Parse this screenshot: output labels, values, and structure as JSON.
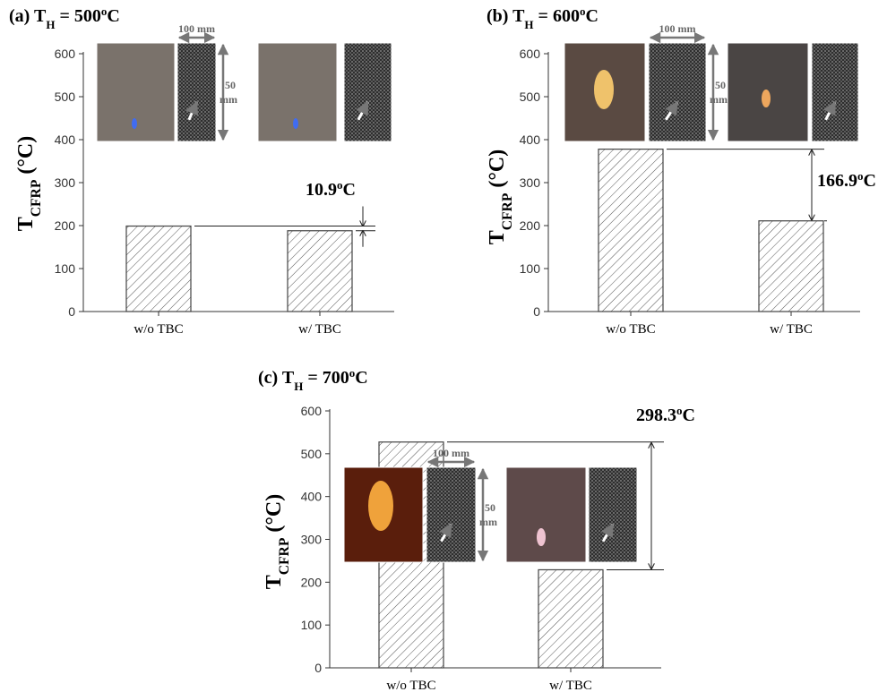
{
  "chart_data": [
    {
      "type": "bar",
      "title": [
        "(a) T",
        "H",
        " = 500",
        "o",
        "C"
      ],
      "ylabel": [
        "T",
        "CFRP",
        " (°C)"
      ],
      "categories": [
        "w/o TBC",
        "w/ TBC"
      ],
      "values": [
        198.9,
        188
      ],
      "color": "#444444",
      "ylim": [
        0,
        600
      ],
      "yticks": [
        0,
        100,
        200,
        300,
        400,
        500,
        600
      ],
      "annotation": [
        "10.9",
        "o",
        "C"
      ],
      "image_labels": [
        "100 mm",
        "50",
        "mm"
      ]
    },
    {
      "type": "bar",
      "title": [
        "(b) T",
        "H",
        " = 600",
        "o",
        "C"
      ],
      "ylabel": [
        "T",
        "CFRP",
        " (°C)"
      ],
      "categories": [
        "w/o TBC",
        "w/ TBC"
      ],
      "values": [
        377.9,
        211
      ],
      "color": "#444444",
      "ylim": [
        0,
        600
      ],
      "yticks": [
        0,
        100,
        200,
        300,
        400,
        500,
        600
      ],
      "annotation": [
        "166.9",
        "o",
        "C"
      ],
      "image_labels": [
        "100 mm",
        "50",
        "mm"
      ]
    },
    {
      "type": "bar",
      "title": [
        "(c) T",
        "H",
        " = 700",
        "o",
        "C"
      ],
      "ylabel": [
        "T",
        "CFRP",
        " (°C)"
      ],
      "categories": [
        "w/o TBC",
        "w/ TBC"
      ],
      "values": [
        527.3,
        229
      ],
      "color": "#444444",
      "ylim": [
        0,
        600
      ],
      "yticks": [
        0,
        100,
        200,
        300,
        400,
        500,
        600
      ],
      "annotation": [
        "298.3",
        "o",
        "C"
      ],
      "image_labels": [
        "100 mm",
        "50",
        "mm"
      ]
    }
  ]
}
